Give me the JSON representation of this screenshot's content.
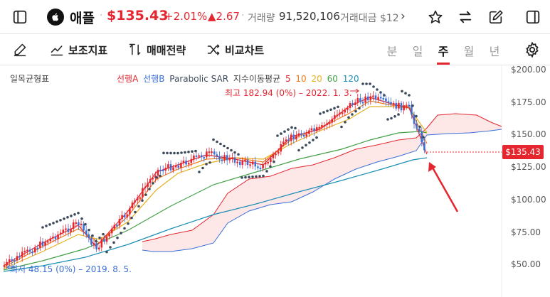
{
  "header": {
    "stock_name": "애플",
    "price": "$135.43",
    "change_pct": "+2.01%",
    "change_value": "▲2.67",
    "volume_label": "거래량",
    "volume_value": "91,520,106",
    "amount_label": "거래대금 $12",
    "more_chevron": "›",
    "separator": "·"
  },
  "toolbar": {
    "indicator_label": "보조지표",
    "strategy_label": "매매전략",
    "compare_label": "비교차트",
    "periods": [
      "분",
      "일",
      "주",
      "월",
      "년"
    ],
    "active_period": "주"
  },
  "chart": {
    "indicator_title": "일목균형표",
    "legend": {
      "span_a": "선행A",
      "span_b": "선행B",
      "sar": "Parabolic SAR",
      "ema_label": "지수이동평균",
      "ema_periods": [
        "5",
        "10",
        "20",
        "60",
        "120"
      ]
    },
    "high_label": "최고 182.94 (0%) – 2022. 1. 3.",
    "low_label": "최저 48.15 (0%) – 2019. 8. 5.",
    "price_tag": "$135.43",
    "y_ticks": [
      "$200.00",
      "$175.00",
      "$150.00",
      "$125.00",
      "$100.00",
      "$75.00",
      "$50.00"
    ],
    "colors": {
      "up": "#e5262f",
      "down": "#3a6fd8",
      "span_a": "#e5262f",
      "span_b": "#3a6fd8",
      "sar": "#3c4a5c",
      "ema5": "#e5262f",
      "ema10": "#f07a1a",
      "ema20": "#e8b020",
      "ema60": "#43a047",
      "ema120": "#1a8fb5",
      "cloud_fill": "#fde4e4",
      "arrow": "#e5262f"
    }
  },
  "icons": {
    "sidebar": "sidebar-toggle-icon",
    "logo": "apple-logo-icon",
    "star": "star-icon",
    "swap": "swap-arrows-icon",
    "edit": "edit-square-icon",
    "panel": "right-panel-icon",
    "draw": "pencil-icon",
    "indicator": "trend-line-icon",
    "strategy": "buy-sell-arrows-icon",
    "compare": "shuffle-icon",
    "settings": "gear-icon"
  }
}
